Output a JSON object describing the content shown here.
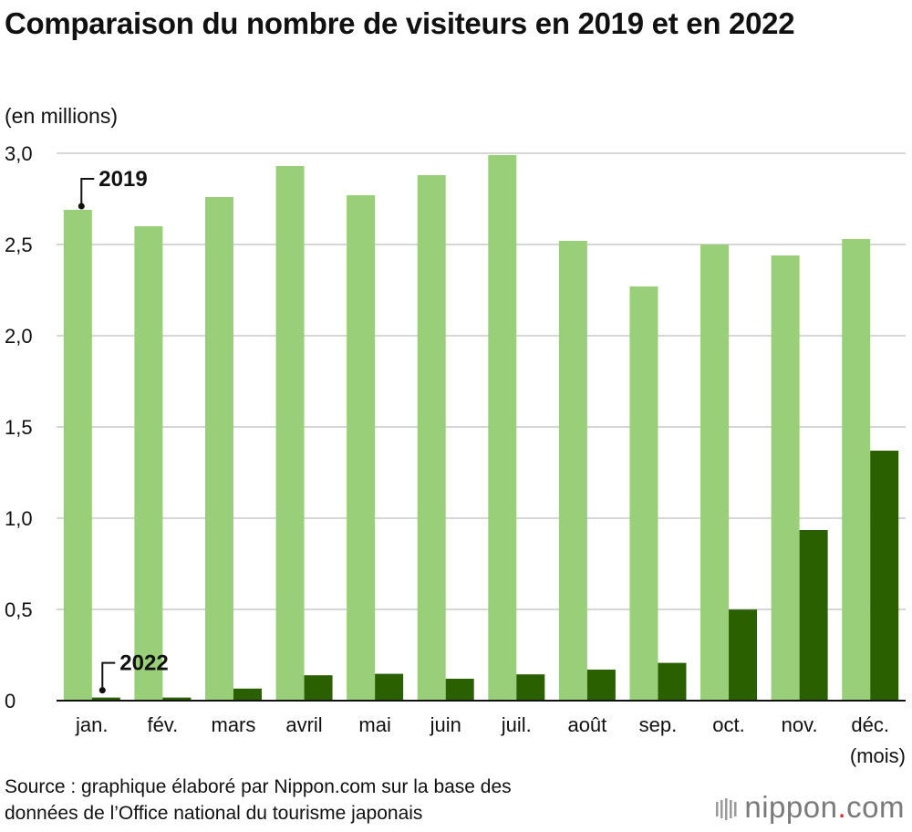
{
  "title": "Comparaison du nombre de visiteurs en 2019 et en 2022",
  "unit_label": "(en millions)",
  "x_unit_label": "(mois)",
  "source": [
    "Source : graphique élaboré par Nippon.com sur la base des",
    "données de l’Office national du tourisme japonais"
  ],
  "brand": {
    "name": "nippon",
    "dot": ".",
    "tld": "com",
    "icon": "bars-logo-icon"
  },
  "colors": {
    "series_2019": "#99cf78",
    "series_2022": "#2a6000",
    "grid": "#c8c8c8",
    "axis": "#111111"
  },
  "chart_data": {
    "type": "bar",
    "categories": [
      "jan.",
      "fév.",
      "mars",
      "avril",
      "mai",
      "juin",
      "juil.",
      "août",
      "sep.",
      "oct.",
      "nov.",
      "déc."
    ],
    "series": [
      {
        "name": "2019",
        "values": [
          2.69,
          2.6,
          2.76,
          2.93,
          2.77,
          2.88,
          2.99,
          2.52,
          2.27,
          2.5,
          2.44,
          2.53
        ]
      },
      {
        "name": "2022",
        "values": [
          0.017,
          0.017,
          0.066,
          0.139,
          0.147,
          0.12,
          0.144,
          0.17,
          0.207,
          0.499,
          0.935,
          1.37
        ]
      }
    ],
    "yticks": [
      "0",
      "0,5",
      "1,0",
      "1,5",
      "2,0",
      "2,5",
      "3,0"
    ],
    "ylim": [
      0,
      3.0
    ],
    "grid": true,
    "legend": "inline callouts on first bars"
  }
}
